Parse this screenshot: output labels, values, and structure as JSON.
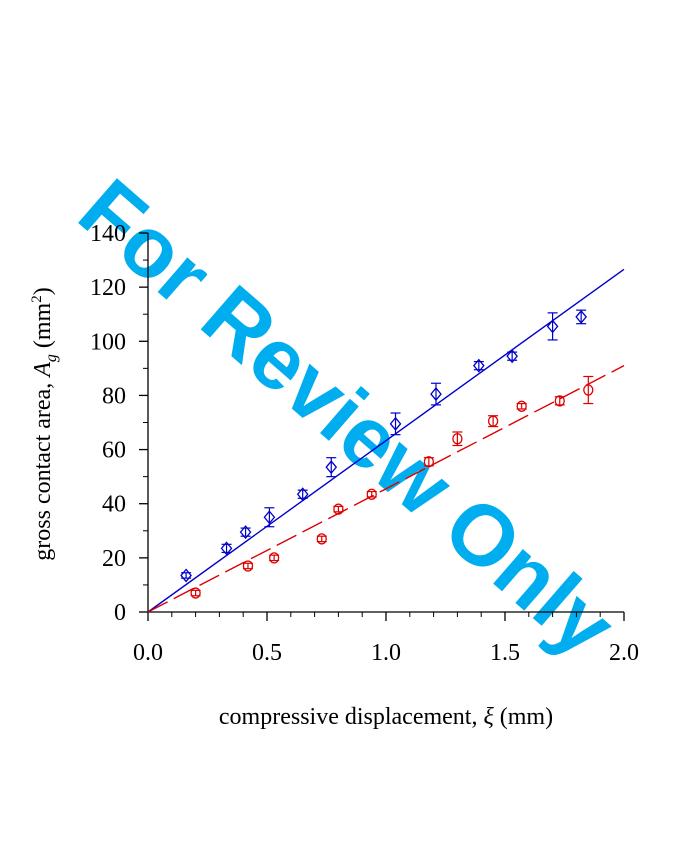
{
  "watermark": {
    "text": "For Review Only",
    "color": "#00AEEF"
  },
  "chart_data": {
    "type": "scatter",
    "xlabel": "compressive displacement,",
    "xlabel_symbol": "ξ",
    "xlabel_unit": "(mm)",
    "ylabel": "gross contact area,",
    "ylabel_symbol": "A",
    "ylabel_subscript": "g",
    "ylabel_unit": "(mm",
    "ylabel_unit_sup": "2",
    "ylabel_unit_close": ")",
    "xlim": [
      0,
      2.0
    ],
    "ylim": [
      0,
      140
    ],
    "xticks": [
      0.0,
      0.5,
      1.0,
      1.5,
      2.0
    ],
    "xtick_labels": [
      "0.0",
      "0.5",
      "1.0",
      "1.5",
      "2.0"
    ],
    "yticks": [
      0,
      20,
      40,
      60,
      80,
      100,
      120,
      140
    ],
    "ytick_labels": [
      "0",
      "20",
      "40",
      "60",
      "80",
      "100",
      "120",
      "140"
    ],
    "grid": false,
    "legend": false,
    "series": [
      {
        "color": "#0000CC",
        "marker": "diamond",
        "points": [
          {
            "x": 0.16,
            "y": 13.5,
            "err": 1.0
          },
          {
            "x": 0.33,
            "y": 23.5,
            "err": 1.5
          },
          {
            "x": 0.41,
            "y": 29.5,
            "err": 1.5
          },
          {
            "x": 0.51,
            "y": 35.0,
            "err": 3.5
          },
          {
            "x": 0.65,
            "y": 43.5,
            "err": 1.5
          },
          {
            "x": 0.77,
            "y": 53.5,
            "err": 3.5
          },
          {
            "x": 1.04,
            "y": 69.5,
            "err": 4.0
          },
          {
            "x": 1.21,
            "y": 80.5,
            "err": 4.0
          },
          {
            "x": 1.39,
            "y": 91.0,
            "err": 1.5
          },
          {
            "x": 1.53,
            "y": 94.5,
            "err": 1.5
          },
          {
            "x": 1.7,
            "y": 105.5,
            "err": 5.0
          },
          {
            "x": 1.82,
            "y": 109.0,
            "err": 2.5
          }
        ],
        "fit": {
          "slope": 63.3,
          "intercept": 0,
          "style": "solid"
        }
      },
      {
        "color": "#DD0000",
        "marker": "circle",
        "points": [
          {
            "x": 0.2,
            "y": 7.0,
            "err": 1.0
          },
          {
            "x": 0.42,
            "y": 17.0,
            "err": 1.0
          },
          {
            "x": 0.53,
            "y": 20.0,
            "err": 1.0
          },
          {
            "x": 0.73,
            "y": 27.0,
            "err": 1.0
          },
          {
            "x": 0.8,
            "y": 38.0,
            "err": 1.0
          },
          {
            "x": 0.94,
            "y": 43.5,
            "err": 1.0
          },
          {
            "x": 1.18,
            "y": 55.5,
            "err": 1.5
          },
          {
            "x": 1.3,
            "y": 64.0,
            "err": 2.5
          },
          {
            "x": 1.45,
            "y": 70.5,
            "err": 2.0
          },
          {
            "x": 1.57,
            "y": 76.0,
            "err": 1.0
          },
          {
            "x": 1.73,
            "y": 78.0,
            "err": 1.5
          },
          {
            "x": 1.85,
            "y": 82.0,
            "err": 5.0
          }
        ],
        "fit": {
          "slope": 45.5,
          "intercept": 0,
          "style": "dashed"
        }
      }
    ]
  }
}
